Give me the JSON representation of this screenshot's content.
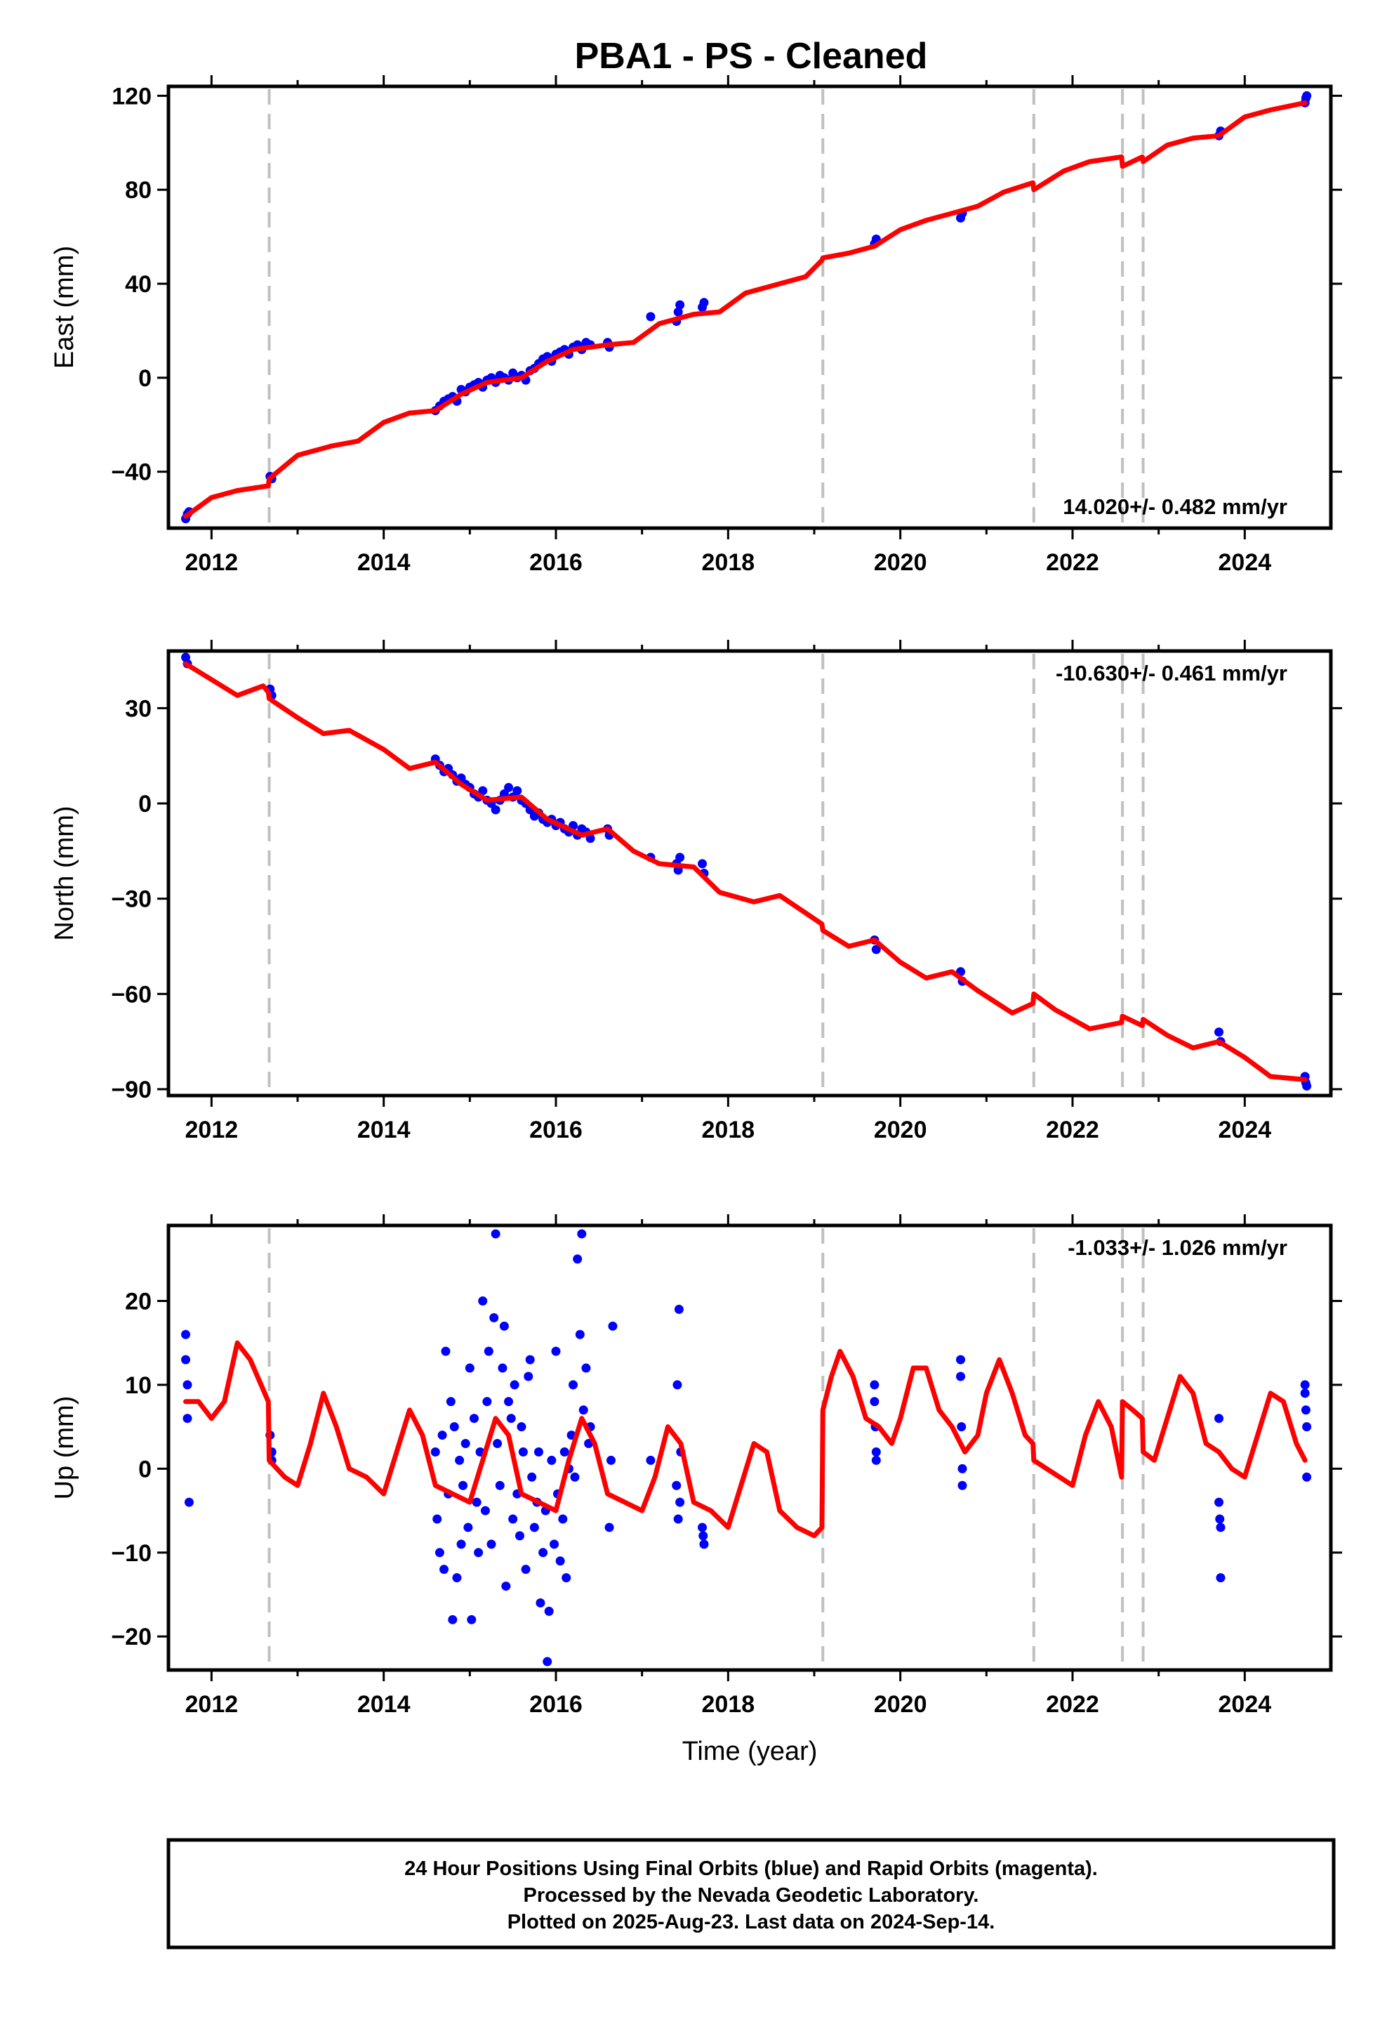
{
  "title": "PBA1  - PS - Cleaned",
  "colors": {
    "data": "#0000ff",
    "model": "#ff0000",
    "breaks": "#c0c0c0"
  },
  "footer": {
    "line1": "24 Hour Positions Using Final Orbits (blue) and Rapid Orbits (magenta).",
    "line2": "Processed by the Nevada Geodetic Laboratory.",
    "line3": "Plotted on 2025-Aug-23. Last data on 2024-Sep-14."
  },
  "chart_data": [
    {
      "type": "scatter",
      "ylabel": "East (mm)",
      "xlabel": "",
      "xlim": [
        2011.5,
        2025.0
      ],
      "ylim": [
        -64,
        124
      ],
      "xticks": [
        2012,
        2014,
        2016,
        2018,
        2020,
        2022,
        2024
      ],
      "yticks": [
        -40,
        0,
        40,
        80,
        120
      ],
      "rate": "14.020+/- 0.482 mm/yr",
      "rate_position": "bottom-right",
      "breaks": [
        2012.67,
        2019.1,
        2021.55,
        2022.58,
        2022.82
      ],
      "model": {
        "name": "",
        "x": [
          2011.7,
          2012.0,
          2012.3,
          2012.66,
          2012.67,
          2013.0,
          2013.4,
          2013.7,
          2014.0,
          2014.3,
          2014.6,
          2014.9,
          2015.2,
          2015.6,
          2015.9,
          2016.2,
          2016.6,
          2016.9,
          2017.2,
          2017.6,
          2017.9,
          2018.2,
          2018.6,
          2018.9,
          2019.09,
          2019.1,
          2019.4,
          2019.7,
          2020.0,
          2020.3,
          2020.6,
          2020.9,
          2021.2,
          2021.54,
          2021.55,
          2021.9,
          2022.2,
          2022.57,
          2022.58,
          2022.81,
          2022.82,
          2023.1,
          2023.4,
          2023.7,
          2024.0,
          2024.3,
          2024.7
        ],
        "y": [
          -59,
          -51,
          -48,
          -46,
          -43,
          -33,
          -29,
          -27,
          -19,
          -15,
          -14,
          -7,
          -2,
          0,
          7,
          12,
          14,
          15,
          23,
          27,
          28,
          36,
          40,
          43,
          50,
          51,
          53,
          56,
          63,
          67,
          70,
          73,
          79,
          83,
          80,
          88,
          92,
          94,
          90,
          94,
          92,
          99,
          102,
          103,
          111,
          114,
          117
        ]
      },
      "points": {
        "name": "",
        "x": [
          2011.7,
          2011.72,
          2011.74,
          2012.68,
          2012.7,
          2014.6,
          2014.65,
          2014.7,
          2014.75,
          2014.8,
          2014.85,
          2014.9,
          2014.95,
          2015.0,
          2015.05,
          2015.1,
          2015.15,
          2015.2,
          2015.25,
          2015.3,
          2015.35,
          2015.4,
          2015.45,
          2015.5,
          2015.55,
          2015.6,
          2015.65,
          2015.7,
          2015.75,
          2015.8,
          2015.85,
          2015.9,
          2015.95,
          2016.0,
          2016.05,
          2016.1,
          2016.15,
          2016.2,
          2016.25,
          2016.3,
          2016.35,
          2016.4,
          2016.6,
          2016.62,
          2017.1,
          2017.4,
          2017.42,
          2017.44,
          2017.7,
          2017.72,
          2019.7,
          2019.72,
          2020.7,
          2020.72,
          2023.7,
          2023.72,
          2024.7,
          2024.71,
          2024.72
        ],
        "y": [
          -60,
          -58,
          -57,
          -42,
          -43,
          -14,
          -12,
          -10,
          -9,
          -8,
          -10,
          -5,
          -6,
          -4,
          -3,
          -2,
          -4,
          -1,
          0,
          -2,
          1,
          0,
          -1,
          2,
          0,
          1,
          -1,
          3,
          4,
          6,
          8,
          9,
          7,
          10,
          11,
          12,
          10,
          13,
          14,
          12,
          15,
          14,
          15,
          13,
          26,
          24,
          28,
          31,
          30,
          32,
          57,
          59,
          68,
          70,
          103,
          105,
          117,
          119,
          120
        ]
      }
    },
    {
      "type": "scatter",
      "ylabel": "North (mm)",
      "xlabel": "",
      "xlim": [
        2011.5,
        2025.0
      ],
      "ylim": [
        -92,
        48
      ],
      "xticks": [
        2012,
        2014,
        2016,
        2018,
        2020,
        2022,
        2024
      ],
      "yticks": [
        -90,
        -60,
        -30,
        0,
        30
      ],
      "rate": "-10.630+/- 0.461 mm/yr",
      "rate_position": "top-right",
      "breaks": [
        2012.67,
        2019.1,
        2021.55,
        2022.58,
        2022.82
      ],
      "model": {
        "name": "",
        "x": [
          2011.7,
          2012.0,
          2012.3,
          2012.6,
          2012.66,
          2012.67,
          2013.0,
          2013.3,
          2013.6,
          2014.0,
          2014.3,
          2014.6,
          2014.9,
          2015.2,
          2015.6,
          2015.9,
          2016.3,
          2016.6,
          2016.9,
          2017.2,
          2017.6,
          2017.9,
          2018.3,
          2018.6,
          2019.09,
          2019.1,
          2019.4,
          2019.7,
          2020.0,
          2020.3,
          2020.6,
          2020.9,
          2021.3,
          2021.54,
          2021.55,
          2021.8,
          2022.2,
          2022.57,
          2022.58,
          2022.81,
          2022.82,
          2023.1,
          2023.4,
          2023.7,
          2024.0,
          2024.3,
          2024.7
        ],
        "y": [
          44,
          39,
          34,
          37,
          35,
          33,
          27,
          22,
          23,
          17,
          11,
          13,
          6,
          1,
          2,
          -5,
          -10,
          -8,
          -15,
          -19,
          -20,
          -28,
          -31,
          -29,
          -38,
          -40,
          -45,
          -43,
          -50,
          -55,
          -53,
          -59,
          -66,
          -63,
          -60,
          -65,
          -71,
          -69,
          -67,
          -70,
          -68,
          -73,
          -77,
          -75,
          -80,
          -86,
          -87
        ]
      },
      "points": {
        "name": "",
        "x": [
          2011.7,
          2011.72,
          2012.68,
          2012.7,
          2014.6,
          2014.65,
          2014.7,
          2014.75,
          2014.8,
          2014.85,
          2014.9,
          2014.95,
          2015.0,
          2015.05,
          2015.1,
          2015.15,
          2015.2,
          2015.25,
          2015.3,
          2015.35,
          2015.4,
          2015.45,
          2015.5,
          2015.55,
          2015.6,
          2015.65,
          2015.7,
          2015.75,
          2015.8,
          2015.85,
          2015.9,
          2015.95,
          2016.0,
          2016.05,
          2016.1,
          2016.15,
          2016.2,
          2016.25,
          2016.3,
          2016.35,
          2016.4,
          2016.6,
          2016.62,
          2017.1,
          2017.4,
          2017.42,
          2017.44,
          2017.7,
          2017.72,
          2019.7,
          2019.72,
          2020.7,
          2020.72,
          2023.7,
          2023.72,
          2024.7,
          2024.71,
          2024.72
        ],
        "y": [
          46,
          44,
          36,
          34,
          14,
          12,
          10,
          11,
          9,
          7,
          8,
          6,
          5,
          3,
          2,
          4,
          1,
          0,
          -2,
          1,
          3,
          5,
          2,
          4,
          1,
          0,
          -2,
          -4,
          -3,
          -5,
          -6,
          -5,
          -7,
          -6,
          -8,
          -9,
          -7,
          -10,
          -8,
          -9,
          -11,
          -8,
          -10,
          -17,
          -19,
          -21,
          -17,
          -19,
          -22,
          -43,
          -46,
          -53,
          -56,
          -72,
          -75,
          -86,
          -88,
          -89
        ]
      }
    },
    {
      "type": "scatter",
      "ylabel": "Up (mm)",
      "xlabel": "Time (year)",
      "xlim": [
        2011.5,
        2025.0
      ],
      "ylim": [
        -24,
        29
      ],
      "xticks": [
        2012,
        2014,
        2016,
        2018,
        2020,
        2022,
        2024
      ],
      "yticks": [
        -20,
        -10,
        0,
        10,
        20
      ],
      "rate": "-1.033+/- 1.026 mm/yr",
      "rate_position": "top-right",
      "breaks": [
        2012.67,
        2019.1,
        2021.55,
        2022.58,
        2022.82
      ],
      "model": {
        "name": "",
        "x": [
          2011.7,
          2011.85,
          2012.0,
          2012.15,
          2012.3,
          2012.45,
          2012.66,
          2012.67,
          2012.85,
          2013.0,
          2013.15,
          2013.3,
          2013.45,
          2013.6,
          2013.8,
          2014.0,
          2014.15,
          2014.3,
          2014.45,
          2014.6,
          2014.8,
          2015.0,
          2015.15,
          2015.3,
          2015.45,
          2015.6,
          2015.8,
          2016.0,
          2016.15,
          2016.3,
          2016.45,
          2016.6,
          2016.8,
          2017.0,
          2017.15,
          2017.3,
          2017.45,
          2017.6,
          2017.8,
          2018.0,
          2018.15,
          2018.3,
          2018.45,
          2018.6,
          2018.8,
          2019.0,
          2019.09,
          2019.1,
          2019.2,
          2019.3,
          2019.45,
          2019.6,
          2019.75,
          2019.9,
          2020.0,
          2020.15,
          2020.3,
          2020.45,
          2020.6,
          2020.75,
          2020.9,
          2021.0,
          2021.15,
          2021.3,
          2021.45,
          2021.54,
          2021.55,
          2021.7,
          2021.85,
          2022.0,
          2022.15,
          2022.3,
          2022.45,
          2022.57,
          2022.58,
          2022.7,
          2022.81,
          2022.82,
          2022.95,
          2023.1,
          2023.25,
          2023.4,
          2023.55,
          2023.7,
          2023.85,
          2024.0,
          2024.15,
          2024.3,
          2024.45,
          2024.6,
          2024.7
        ],
        "y": [
          8,
          8,
          6,
          8,
          15,
          13,
          8,
          1,
          -1,
          -2,
          3,
          9,
          5,
          0,
          -1,
          -3,
          2,
          7,
          4,
          -2,
          -3,
          -4,
          1,
          6,
          4,
          -3,
          -4,
          -5,
          1,
          6,
          3,
          -3,
          -4,
          -5,
          -1,
          5,
          3,
          -4,
          -5,
          -7,
          -2,
          3,
          2,
          -5,
          -7,
          -8,
          -7,
          7,
          11,
          14,
          11,
          6,
          5,
          3,
          6,
          12,
          12,
          7,
          5,
          2,
          4,
          9,
          13,
          9,
          4,
          3,
          1,
          0,
          -1,
          -2,
          4,
          8,
          5,
          -1,
          8,
          7,
          6,
          2,
          1,
          6,
          11,
          9,
          3,
          2,
          0,
          -1,
          4,
          9,
          8,
          3,
          1
        ]
      },
      "points": {
        "name": "",
        "x": [
          2011.7,
          2011.7,
          2011.72,
          2011.72,
          2011.74,
          2012.68,
          2012.7,
          2012.7,
          2014.6,
          2014.62,
          2014.65,
          2014.68,
          2014.7,
          2014.72,
          2014.75,
          2014.78,
          2014.8,
          2014.82,
          2014.85,
          2014.88,
          2014.9,
          2014.92,
          2014.95,
          2014.98,
          2015.0,
          2015.02,
          2015.05,
          2015.08,
          2015.1,
          2015.12,
          2015.15,
          2015.18,
          2015.2,
          2015.22,
          2015.25,
          2015.28,
          2015.3,
          2015.32,
          2015.35,
          2015.38,
          2015.4,
          2015.42,
          2015.45,
          2015.48,
          2015.5,
          2015.52,
          2015.55,
          2015.58,
          2015.6,
          2015.62,
          2015.65,
          2015.68,
          2015.7,
          2015.72,
          2015.75,
          2015.78,
          2015.8,
          2015.82,
          2015.85,
          2015.88,
          2015.9,
          2015.92,
          2015.95,
          2015.98,
          2016.0,
          2016.02,
          2016.05,
          2016.08,
          2016.1,
          2016.12,
          2016.15,
          2016.18,
          2016.2,
          2016.22,
          2016.25,
          2016.28,
          2016.3,
          2016.32,
          2016.35,
          2016.38,
          2016.4,
          2016.62,
          2016.64,
          2016.66,
          2017.1,
          2017.4,
          2017.41,
          2017.42,
          2017.43,
          2017.44,
          2017.45,
          2017.7,
          2017.71,
          2017.72,
          2019.7,
          2019.7,
          2019.71,
          2019.72,
          2019.72,
          2020.7,
          2020.7,
          2020.71,
          2020.72,
          2020.72,
          2023.7,
          2023.7,
          2023.71,
          2023.72,
          2023.72,
          2024.7,
          2024.7,
          2024.71,
          2024.72,
          2024.72
        ],
        "y": [
          16,
          13,
          10,
          6,
          -4,
          4,
          2,
          1,
          2,
          -6,
          -10,
          4,
          -12,
          14,
          -3,
          8,
          -18,
          5,
          -13,
          1,
          -9,
          -2,
          3,
          -7,
          12,
          -18,
          6,
          -4,
          -10,
          2,
          20,
          -5,
          8,
          14,
          -9,
          18,
          28,
          3,
          -2,
          12,
          17,
          -14,
          8,
          6,
          -6,
          10,
          -3,
          -8,
          5,
          2,
          -12,
          11,
          13,
          -1,
          -7,
          -4,
          2,
          -16,
          -10,
          -5,
          -23,
          -17,
          1,
          -9,
          14,
          -3,
          -11,
          -6,
          2,
          -13,
          0,
          4,
          10,
          -1,
          25,
          16,
          28,
          7,
          12,
          3,
          5,
          -7,
          1,
          17,
          1,
          -2,
          10,
          -6,
          19,
          -4,
          2,
          -7,
          -8,
          -9,
          10,
          8,
          5,
          2,
          1,
          13,
          11,
          5,
          0,
          -2,
          6,
          -4,
          -6,
          -7,
          -13,
          10,
          9,
          7,
          -1,
          5
        ]
      }
    }
  ]
}
